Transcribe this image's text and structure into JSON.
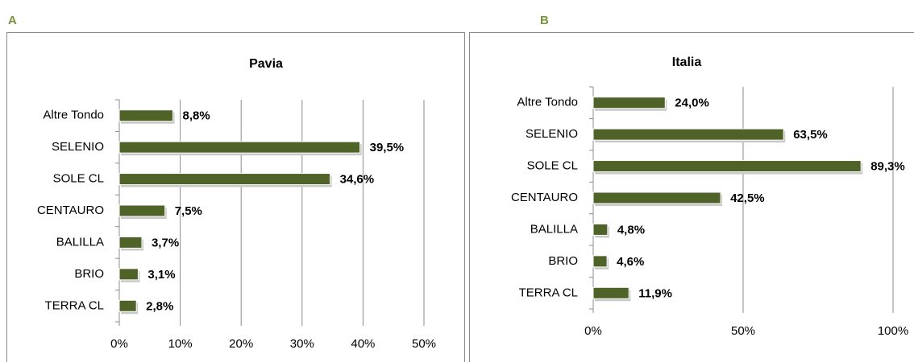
{
  "panels": [
    "A",
    "B"
  ],
  "chart_data": [
    {
      "type": "hbar",
      "title": "Pavia",
      "categories": [
        "Altre Tondo",
        "SELENIO",
        "SOLE CL",
        "CENTAURO",
        "BALILLA",
        "BRIO",
        "TERRA CL"
      ],
      "values": [
        8.8,
        39.5,
        34.6,
        7.5,
        3.7,
        3.1,
        2.8
      ],
      "value_labels": [
        "8,8%",
        "39,5%",
        "34,6%",
        "7,5%",
        "3,7%",
        "3,1%",
        "2,8%"
      ],
      "color": "#4f6228",
      "xlim": [
        0,
        50
      ],
      "xticks": [
        {
          "value": 0,
          "label": "0%"
        },
        {
          "value": 10,
          "label": "10%"
        },
        {
          "value": 20,
          "label": "20%"
        },
        {
          "value": 30,
          "label": "30%"
        },
        {
          "value": 40,
          "label": "40%"
        },
        {
          "value": 50,
          "label": "50%"
        }
      ],
      "grid": true
    },
    {
      "type": "hbar",
      "title": "Italia",
      "categories": [
        "Altre Tondo",
        "SELENIO",
        "SOLE CL",
        "CENTAURO",
        "BALILLA",
        "BRIO",
        "TERRA CL"
      ],
      "values": [
        24.0,
        63.5,
        89.3,
        42.5,
        4.8,
        4.6,
        11.9
      ],
      "value_labels": [
        "24,0%",
        "63,5%",
        "89,3%",
        "42,5%",
        "4,8%",
        "4,6%",
        "11,9%"
      ],
      "color": "#4f6228",
      "xlim": [
        0,
        100
      ],
      "xticks": [
        {
          "value": 0,
          "label": "0%"
        },
        {
          "value": 50,
          "label": "50%"
        },
        {
          "value": 100,
          "label": "100%"
        }
      ],
      "grid": true
    }
  ]
}
